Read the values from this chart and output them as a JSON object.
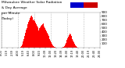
{
  "title_line1": "Milwaukee Weather Solar Radiation",
  "title_line2": "& Day Average",
  "title_line3": "per Minute",
  "title_line4": "(Today)",
  "title_fontsize": 3.2,
  "bg_color": "#ffffff",
  "plot_bg_color": "#ffffff",
  "bar_color": "#ff0000",
  "grid_color": "#bbbbbb",
  "legend_blue": "#0000cc",
  "legend_red": "#cc0000",
  "ylim": [
    0,
    900
  ],
  "ylabel_fontsize": 3.0,
  "xlabel_fontsize": 2.5,
  "ytick_vals": [
    100,
    200,
    300,
    400,
    500,
    600,
    700,
    800,
    900
  ],
  "num_points": 144,
  "solar_data": [
    0,
    0,
    0,
    0,
    0,
    0,
    0,
    0,
    0,
    0,
    0,
    0,
    0,
    0,
    0,
    0,
    0,
    0,
    0,
    0,
    0,
    0,
    0,
    0,
    0,
    0,
    0,
    5,
    10,
    20,
    40,
    80,
    150,
    220,
    300,
    380,
    450,
    500,
    560,
    600,
    650,
    700,
    750,
    800,
    820,
    780,
    760,
    700,
    720,
    680,
    640,
    600,
    560,
    520,
    480,
    440,
    500,
    520,
    560,
    580,
    600,
    620,
    580,
    540,
    500,
    460,
    420,
    380,
    340,
    300,
    260,
    220,
    180,
    140,
    100,
    60,
    40,
    20,
    10,
    5,
    0,
    0,
    0,
    0,
    0,
    0,
    0,
    0,
    0,
    5,
    10,
    20,
    40,
    80,
    120,
    160,
    200,
    240,
    280,
    320,
    360,
    340,
    300,
    260,
    220,
    180,
    140,
    100,
    60,
    40,
    20,
    10,
    5,
    0,
    0,
    0,
    0,
    0,
    0,
    0,
    0,
    0,
    0,
    0,
    0,
    0,
    0,
    0,
    0,
    0,
    0,
    0,
    0,
    0,
    0,
    0,
    0,
    0,
    0,
    0,
    0,
    0,
    0,
    0
  ]
}
